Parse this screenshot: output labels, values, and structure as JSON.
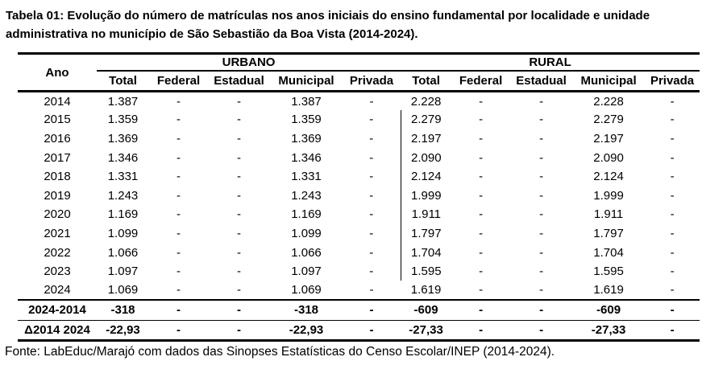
{
  "title": "Tabela 01: Evolução do número de matrículas nos anos iniciais do ensino fundamental por localidade e unidade administrativa no município de São Sebastião da Boa Vista (2014-2024).",
  "table": {
    "year_header": "Ano",
    "groups": [
      {
        "label": "URBANO",
        "columns": [
          "Total",
          "Federal",
          "Estadual",
          "Municipal",
          "Privada"
        ]
      },
      {
        "label": "RURAL",
        "columns": [
          "Total",
          "Federal",
          "Estadual",
          "Municipal",
          "Privada"
        ]
      }
    ],
    "rows": [
      {
        "ano": "2014",
        "urbano": [
          "1.387",
          "-",
          "-",
          "1.387",
          "-"
        ],
        "rural": [
          "2.228",
          "-",
          "-",
          "2.228",
          "-"
        ]
      },
      {
        "ano": "2015",
        "urbano": [
          "1.359",
          "-",
          "-",
          "1.359",
          "-"
        ],
        "rural": [
          "2.279",
          "-",
          "-",
          "2.279",
          "-"
        ]
      },
      {
        "ano": "2016",
        "urbano": [
          "1.369",
          "-",
          "-",
          "1.369",
          "-"
        ],
        "rural": [
          "2.197",
          "-",
          "-",
          "2.197",
          "-"
        ]
      },
      {
        "ano": "2017",
        "urbano": [
          "1.346",
          "-",
          "-",
          "1.346",
          "-"
        ],
        "rural": [
          "2.090",
          "-",
          "-",
          "2.090",
          "-"
        ]
      },
      {
        "ano": "2018",
        "urbano": [
          "1.331",
          "-",
          "-",
          "1.331",
          "-"
        ],
        "rural": [
          "2.124",
          "-",
          "-",
          "2.124",
          "-"
        ]
      },
      {
        "ano": "2019",
        "urbano": [
          "1.243",
          "-",
          "-",
          "1.243",
          "-"
        ],
        "rural": [
          "1.999",
          "-",
          "-",
          "1.999",
          "-"
        ]
      },
      {
        "ano": "2020",
        "urbano": [
          "1.169",
          "-",
          "-",
          "1.169",
          "-"
        ],
        "rural": [
          "1.911",
          "-",
          "-",
          "1.911",
          "-"
        ]
      },
      {
        "ano": "2021",
        "urbano": [
          "1.099",
          "-",
          "-",
          "1.099",
          "-"
        ],
        "rural": [
          "1.797",
          "-",
          "-",
          "1.797",
          "-"
        ]
      },
      {
        "ano": "2022",
        "urbano": [
          "1.066",
          "-",
          "-",
          "1.066",
          "-"
        ],
        "rural": [
          "1.704",
          "-",
          "-",
          "1.704",
          "-"
        ]
      },
      {
        "ano": "2023",
        "urbano": [
          "1.097",
          "-",
          "-",
          "1.097",
          "-"
        ],
        "rural": [
          "1.595",
          "-",
          "-",
          "1.595",
          "-"
        ]
      },
      {
        "ano": "2024",
        "urbano": [
          "1.069",
          "-",
          "-",
          "1.069",
          "-"
        ],
        "rural": [
          "1.619",
          "-",
          "-",
          "1.619",
          "-"
        ]
      }
    ],
    "summary_rows": [
      {
        "ano": "2024-2014",
        "urbano": [
          "-318",
          "-",
          "-",
          "-318",
          "-"
        ],
        "rural": [
          "-609",
          "-",
          "-",
          "-609",
          "-"
        ]
      },
      {
        "ano": "Δ2014 2024",
        "urbano": [
          "-22,93",
          "-",
          "-",
          "-22,93",
          "-"
        ],
        "rural": [
          "-27,33",
          "-",
          "-",
          "-27,33",
          "-"
        ]
      }
    ]
  },
  "source": "Fonte: LabEduc/Marajó com dados das Sinopses Estatísticas do Censo Escolar/INEP (2014-2024)."
}
